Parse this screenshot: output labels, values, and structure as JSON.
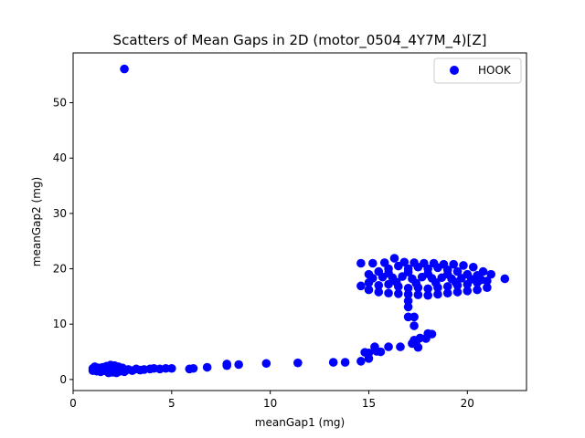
{
  "chart_data": {
    "type": "scatter",
    "title": "Scatters of Mean Gaps in 2D (motor_0504_4Y7M_4)[Z]",
    "xlabel": "meanGap1 (mg)",
    "ylabel": "meanGap2 (mg)",
    "xlim": [
      0,
      23
    ],
    "ylim": [
      -2,
      59
    ],
    "xticks": [
      0,
      5,
      10,
      15,
      20
    ],
    "yticks": [
      0,
      10,
      20,
      30,
      40,
      50
    ],
    "grid": false,
    "legend_position": "top-right",
    "series": [
      {
        "name": "HOOK",
        "color": "#0000ff",
        "points": [
          [
            2.6,
            56.1
          ],
          [
            1.0,
            2.0
          ],
          [
            1.0,
            1.6
          ],
          [
            1.1,
            2.3
          ],
          [
            1.2,
            1.5
          ],
          [
            1.3,
            2.1
          ],
          [
            1.4,
            1.4
          ],
          [
            1.5,
            2.2
          ],
          [
            1.6,
            1.6
          ],
          [
            1.7,
            2.4
          ],
          [
            1.8,
            1.2
          ],
          [
            1.9,
            2.6
          ],
          [
            2.0,
            1.3
          ],
          [
            2.1,
            2.5
          ],
          [
            2.2,
            1.2
          ],
          [
            2.3,
            2.3
          ],
          [
            2.4,
            1.5
          ],
          [
            2.5,
            2.1
          ],
          [
            2.6,
            1.4
          ],
          [
            2.8,
            1.8
          ],
          [
            3.0,
            1.6
          ],
          [
            3.2,
            1.9
          ],
          [
            3.4,
            1.7
          ],
          [
            3.6,
            1.8
          ],
          [
            3.9,
            1.9
          ],
          [
            4.1,
            2.0
          ],
          [
            4.4,
            1.9
          ],
          [
            4.7,
            2.0
          ],
          [
            5.0,
            2.0
          ],
          [
            5.9,
            1.9
          ],
          [
            6.1,
            2.0
          ],
          [
            6.8,
            2.2
          ],
          [
            7.8,
            2.5
          ],
          [
            7.8,
            2.8
          ],
          [
            8.4,
            2.7
          ],
          [
            9.8,
            2.9
          ],
          [
            11.4,
            3.0
          ],
          [
            13.2,
            3.1
          ],
          [
            13.8,
            3.1
          ],
          [
            14.6,
            3.3
          ],
          [
            14.8,
            4.9
          ],
          [
            15.0,
            3.8
          ],
          [
            15.0,
            4.8
          ],
          [
            15.3,
            5.9
          ],
          [
            15.4,
            5.1
          ],
          [
            15.6,
            5.0
          ],
          [
            16.0,
            5.9
          ],
          [
            16.6,
            5.9
          ],
          [
            17.0,
            11.3
          ],
          [
            17.2,
            6.5
          ],
          [
            17.3,
            11.3
          ],
          [
            17.3,
            7.1
          ],
          [
            17.3,
            9.7
          ],
          [
            17.4,
            6.8
          ],
          [
            17.5,
            5.8
          ],
          [
            17.6,
            7.5
          ],
          [
            17.9,
            7.4
          ],
          [
            18.0,
            8.3
          ],
          [
            18.2,
            8.2
          ],
          [
            17.0,
            13.1
          ],
          [
            17.0,
            14.2
          ],
          [
            14.6,
            21.0
          ],
          [
            15.2,
            21.0
          ],
          [
            15.8,
            21.1
          ],
          [
            16.3,
            21.9
          ],
          [
            16.8,
            21.2
          ],
          [
            17.3,
            21.1
          ],
          [
            17.8,
            21.0
          ],
          [
            18.3,
            21.0
          ],
          [
            18.8,
            20.8
          ],
          [
            19.3,
            20.8
          ],
          [
            19.8,
            20.6
          ],
          [
            20.3,
            20.3
          ],
          [
            20.8,
            19.5
          ],
          [
            21.2,
            19.0
          ],
          [
            21.9,
            18.2
          ],
          [
            14.6,
            16.9
          ],
          [
            15.0,
            16.2
          ],
          [
            15.5,
            15.8
          ],
          [
            16.0,
            15.6
          ],
          [
            16.5,
            15.5
          ],
          [
            17.0,
            15.4
          ],
          [
            17.5,
            15.3
          ],
          [
            18.0,
            15.2
          ],
          [
            18.5,
            15.4
          ],
          [
            19.0,
            15.6
          ],
          [
            19.5,
            15.8
          ],
          [
            20.0,
            16.0
          ],
          [
            20.5,
            16.2
          ],
          [
            21.0,
            16.6
          ],
          [
            15.0,
            19.0
          ],
          [
            15.5,
            19.5
          ],
          [
            16.0,
            20.0
          ],
          [
            16.5,
            20.5
          ],
          [
            17.0,
            20.0
          ],
          [
            17.5,
            20.3
          ],
          [
            18.0,
            20.0
          ],
          [
            18.5,
            20.2
          ],
          [
            19.0,
            19.8
          ],
          [
            19.5,
            19.5
          ],
          [
            20.0,
            19.0
          ],
          [
            20.5,
            18.8
          ],
          [
            15.0,
            17.5
          ],
          [
            15.5,
            17.0
          ],
          [
            16.0,
            17.2
          ],
          [
            16.5,
            16.8
          ],
          [
            17.0,
            16.5
          ],
          [
            17.5,
            16.6
          ],
          [
            18.0,
            16.4
          ],
          [
            18.5,
            16.6
          ],
          [
            19.0,
            16.8
          ],
          [
            19.5,
            17.0
          ],
          [
            20.0,
            17.2
          ],
          [
            20.5,
            17.5
          ],
          [
            21.0,
            17.8
          ],
          [
            15.2,
            18.3
          ],
          [
            15.7,
            18.5
          ],
          [
            16.2,
            18.4
          ],
          [
            16.7,
            18.6
          ],
          [
            17.2,
            18.2
          ],
          [
            17.7,
            18.5
          ],
          [
            18.2,
            18.3
          ],
          [
            18.7,
            18.4
          ],
          [
            19.2,
            18.2
          ],
          [
            19.7,
            18.3
          ],
          [
            20.2,
            18.1
          ],
          [
            20.7,
            18.0
          ],
          [
            16.0,
            19.2
          ],
          [
            17.0,
            19.4
          ],
          [
            18.0,
            19.1
          ],
          [
            19.0,
            19.0
          ],
          [
            16.4,
            17.6
          ],
          [
            17.4,
            17.4
          ],
          [
            18.4,
            17.5
          ],
          [
            19.4,
            17.6
          ]
        ]
      }
    ]
  }
}
